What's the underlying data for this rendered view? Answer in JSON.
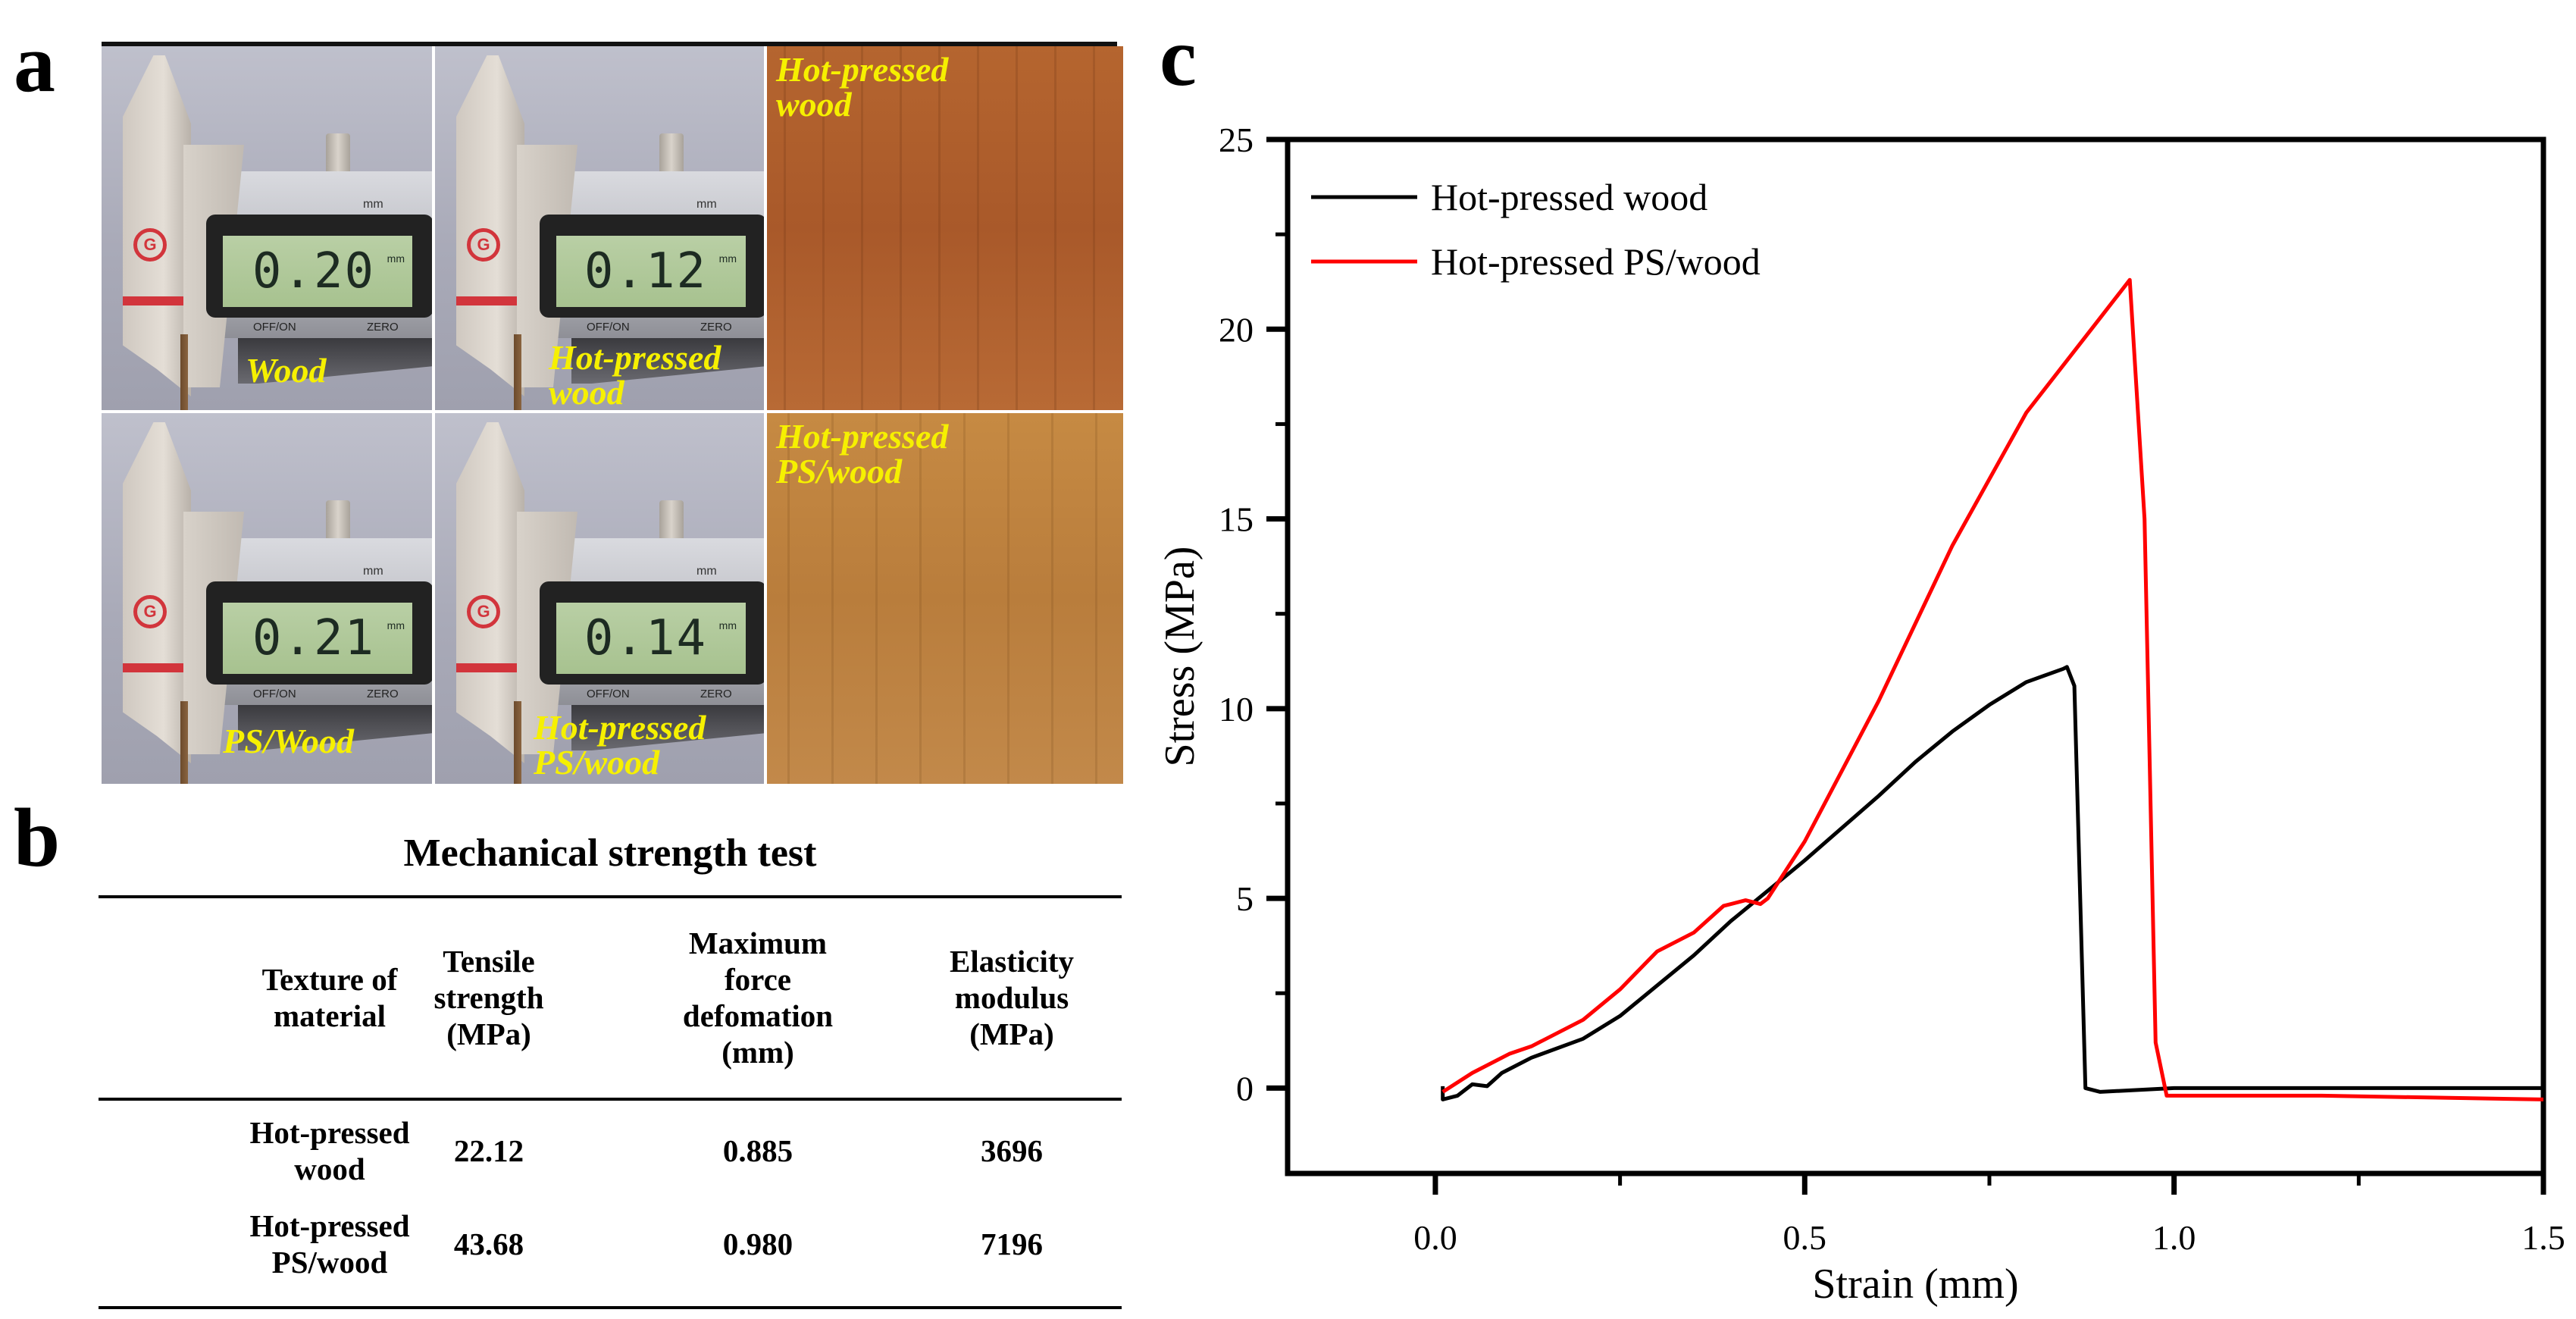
{
  "panel_labels": {
    "a": "a",
    "b": "b",
    "c": "c"
  },
  "photos": {
    "cells": [
      {
        "type": "caliper",
        "reading": "0.20",
        "unit": "mm",
        "label": "Wood"
      },
      {
        "type": "caliper",
        "reading": "0.12",
        "unit": "mm",
        "label": "Hot-pressed wood"
      },
      {
        "type": "wood",
        "label": "Hot-pressed wood"
      },
      {
        "type": "caliper",
        "reading": "0.21",
        "unit": "mm",
        "label": "PS/Wood"
      },
      {
        "type": "caliper",
        "reading": "0.14",
        "unit": "mm",
        "label": "Hot-pressed PS/wood"
      },
      {
        "type": "wood",
        "label": "Hot-pressed PS/wood"
      }
    ],
    "caliper_text": {
      "mm": "mm",
      "off_on": "OFF/ON",
      "zero": "ZERO",
      "logo": "G"
    },
    "label_color": "#f6f000"
  },
  "table": {
    "title": "Mechanical strength test",
    "headers": [
      [
        "Texture of",
        "material"
      ],
      [
        "Tensile",
        "strength",
        "(MPa)"
      ],
      [
        "Maximum",
        "force",
        "defomation",
        "(mm)"
      ],
      [
        "Elasticity",
        "modulus",
        "(MPa)"
      ]
    ],
    "rows": [
      {
        "material": [
          "Hot-pressed",
          "wood"
        ],
        "tensile_strength": "22.12",
        "max_force_deformation": "0.885",
        "elasticity_modulus": "3696"
      },
      {
        "material": [
          "Hot-pressed",
          "PS/wood"
        ],
        "tensile_strength": "43.68",
        "max_force_deformation": "0.980",
        "elasticity_modulus": "7196"
      }
    ]
  },
  "chart_data": {
    "type": "line",
    "title": "",
    "xlabel": "Strain (mm)",
    "ylabel": "Stress (MPa)",
    "xlim": [
      -0.2,
      1.5
    ],
    "ylim": [
      -2.25,
      25
    ],
    "xticks": [
      "0.0",
      "0.5",
      "1.0",
      "1.5"
    ],
    "xtick_values": [
      0,
      0.5,
      1.0,
      1.5
    ],
    "yticks": [
      "0",
      "5",
      "10",
      "15",
      "20",
      "25"
    ],
    "ytick_values": [
      0,
      5,
      10,
      15,
      20,
      25
    ],
    "grid": false,
    "legend_position": "top-left",
    "series": [
      {
        "name": "Hot-pressed wood",
        "color": "#000000",
        "x": [
          0.01,
          0.01,
          0.03,
          0.05,
          0.07,
          0.09,
          0.13,
          0.2,
          0.25,
          0.3,
          0.35,
          0.4,
          0.45,
          0.5,
          0.6,
          0.65,
          0.7,
          0.75,
          0.8,
          0.85,
          0.855,
          0.865,
          0.88,
          0.9,
          1.0,
          1.5
        ],
        "y": [
          0.05,
          -0.3,
          -0.2,
          0.1,
          0.05,
          0.4,
          0.8,
          1.3,
          1.9,
          2.7,
          3.5,
          4.4,
          5.2,
          6.0,
          7.7,
          8.6,
          9.4,
          10.1,
          10.7,
          11.05,
          11.1,
          10.6,
          0,
          -0.1,
          0,
          0
        ]
      },
      {
        "name": "Hot-pressed PS/wood",
        "color": "#ff0000",
        "x": [
          0.01,
          0.05,
          0.1,
          0.13,
          0.2,
          0.25,
          0.3,
          0.35,
          0.39,
          0.42,
          0.44,
          0.45,
          0.5,
          0.6,
          0.7,
          0.8,
          0.9,
          0.94,
          0.96,
          0.975,
          0.99,
          1.2,
          1.5
        ],
        "y": [
          -0.1,
          0.4,
          0.9,
          1.1,
          1.8,
          2.6,
          3.6,
          4.1,
          4.8,
          4.95,
          4.85,
          5.0,
          6.5,
          10.2,
          14.3,
          17.8,
          20.3,
          21.3,
          15,
          1.2,
          -0.2,
          -0.2,
          -0.3
        ]
      }
    ]
  }
}
